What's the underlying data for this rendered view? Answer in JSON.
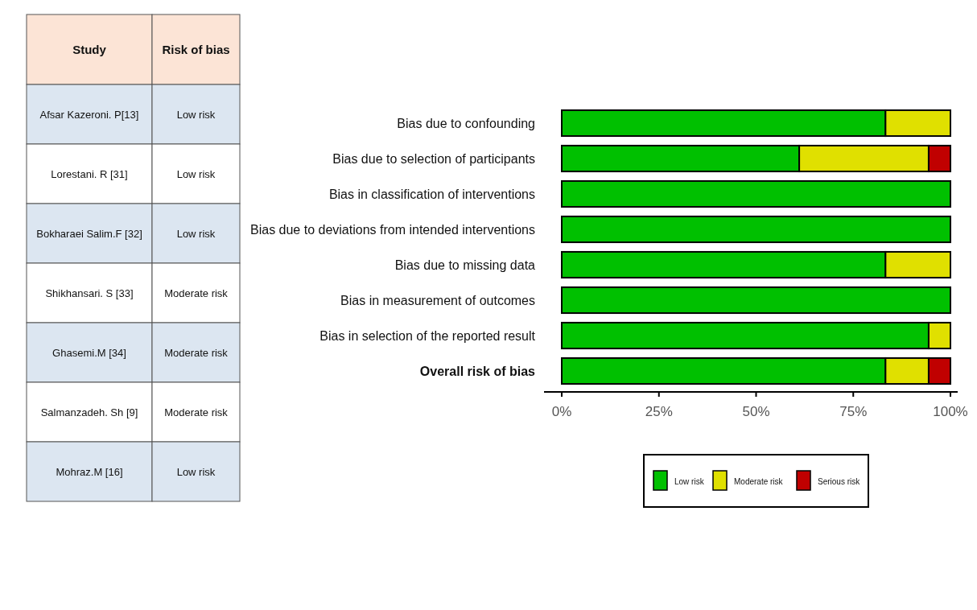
{
  "chart_data": [
    {
      "type": "other",
      "annotations": [
        "Study",
        "Risk of bias",
        "Afsar Kazeroni. P[13]",
        "Low risk",
        "Lorestani. R [31]",
        "Low risk",
        "Bokharaei Salim.F [32]",
        "Low risk",
        "Shikhansari. S [33]",
        "Moderate risk",
        "Ghasemi.M [34]",
        "Moderate risk",
        "Salmanzadeh. Sh [9]",
        "Moderate risk",
        "Mohraz.M [16]",
        "Low risk"
      ]
    },
    {
      "type": "bar",
      "orientation": "horizontal",
      "stacked": true,
      "categories": [
        "Bias due to confounding",
        "Bias due to selection of participants",
        "Bias in classification of interventions",
        "Bias due to deviations from intended interventions",
        "Bias due to missing data",
        "Bias in measurement of outcomes",
        "Bias in selection of the reported result",
        "Overall risk of bias"
      ],
      "series": [
        {
          "name": "Low risk",
          "color": "#00c000",
          "values": [
            83.3,
            61.1,
            100,
            100,
            83.3,
            100,
            94.4,
            83.3
          ]
        },
        {
          "name": "Moderate risk",
          "color": "#e0e000",
          "values": [
            16.7,
            33.3,
            0,
            0,
            16.7,
            0,
            5.6,
            11.1
          ]
        },
        {
          "name": "Serious risk",
          "color": "#c00000",
          "values": [
            0,
            5.6,
            0,
            0,
            0,
            0,
            0,
            5.6
          ]
        }
      ],
      "xlim": [
        0,
        100
      ],
      "xticks": [
        {
          "value": 0,
          "label": "0%"
        },
        {
          "value": 25,
          "label": "25%"
        },
        {
          "value": 50,
          "label": "50%"
        },
        {
          "value": 75,
          "label": "75%"
        },
        {
          "value": 100,
          "label": "100%"
        }
      ],
      "grid": false,
      "legend": "bottom"
    }
  ]
}
